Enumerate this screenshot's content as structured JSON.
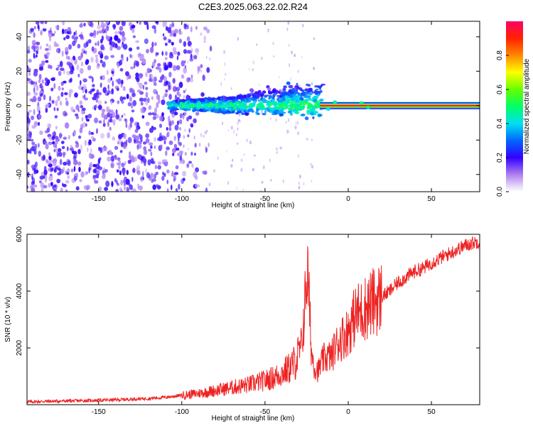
{
  "title": "C2E3.2025.063.22.02.R24",
  "chart_data": [
    {
      "type": "heatmap",
      "xlabel": "Height of straight line (km)",
      "ylabel": "Frequency (Hz)",
      "xlim": [
        -193,
        79
      ],
      "ylim": [
        -50,
        49
      ],
      "x_ticks": [
        -150,
        -100,
        -50,
        0,
        50
      ],
      "y_ticks": [
        -40,
        -20,
        0,
        20,
        40
      ],
      "colorbar": {
        "label": "Normalized spectral amplitude",
        "range": [
          0,
          1
        ],
        "ticks": [
          0.0,
          0.2,
          0.4,
          0.6,
          0.8
        ]
      },
      "features": [
        {
          "name": "noise",
          "x_range": [
            -193,
            -100
          ],
          "freq_spread": [
            -50,
            49
          ],
          "amplitude": 0.1
        },
        {
          "name": "signal_band_scattered",
          "x_range": [
            -108,
            -15
          ],
          "freq_center": 0,
          "freq_spread": [
            -8,
            12
          ],
          "amplitude": 0.35
        },
        {
          "name": "signal_line",
          "x_range": [
            -15,
            79
          ],
          "freq_center": 0,
          "amplitude": 1.0
        }
      ],
      "grid": false
    },
    {
      "type": "line",
      "xlabel": "Height of straight line (km)",
      "ylabel": "SNR (10 * v/v)",
      "xlim": [
        -193,
        79
      ],
      "ylim": [
        0,
        6000
      ],
      "x_ticks": [
        -150,
        -100,
        -50,
        0,
        50
      ],
      "y_ticks": [
        2000,
        4000,
        6000
      ],
      "color": "#ee2222",
      "series": [
        {
          "x": [
            -193,
            -180,
            -160,
            -140,
            -120,
            -110,
            -100,
            -90,
            -80,
            -70,
            -60,
            -50,
            -45,
            -40,
            -35,
            -32,
            -30,
            -28,
            -26,
            -25,
            -24,
            -23,
            -22,
            -20,
            -18,
            -15,
            -12,
            -10,
            -8,
            -5,
            -3,
            0,
            3,
            5,
            8,
            10,
            12,
            15,
            20,
            25,
            30,
            35,
            40,
            45,
            50,
            55,
            60,
            65,
            70,
            75,
            79
          ],
          "values": [
            100,
            120,
            140,
            170,
            220,
            260,
            330,
            400,
            500,
            600,
            700,
            850,
            950,
            1100,
            1300,
            1500,
            1750,
            2100,
            3500,
            4700,
            4300,
            3000,
            1800,
            1300,
            1200,
            1600,
            1700,
            1700,
            2000,
            2300,
            2400,
            2600,
            3000,
            3200,
            3300,
            3400,
            3500,
            3600,
            3800,
            4000,
            4300,
            4500,
            4700,
            4800,
            5000,
            5150,
            5300,
            5450,
            5600,
            5700,
            5750
          ]
        }
      ],
      "grid": false
    }
  ]
}
